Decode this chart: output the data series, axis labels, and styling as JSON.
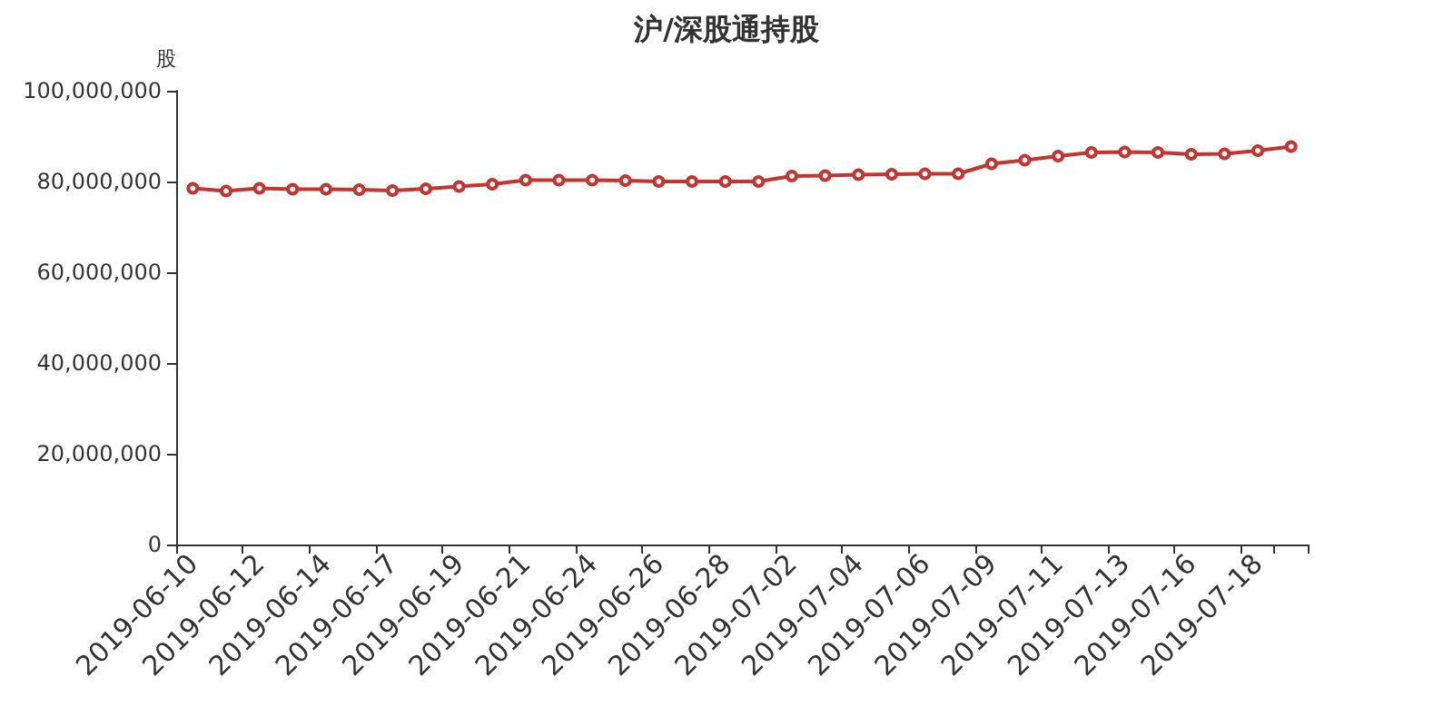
{
  "chart_data": {
    "type": "line",
    "title": "沪/深股通持股",
    "ylabel": "股",
    "categories": [
      "2019-06-10",
      null,
      "2019-06-12",
      null,
      "2019-06-14",
      null,
      "2019-06-17",
      null,
      "2019-06-19",
      null,
      "2019-06-21",
      null,
      "2019-06-24",
      null,
      "2019-06-26",
      null,
      "2019-06-28",
      null,
      "2019-07-02",
      null,
      "2019-07-04",
      null,
      "2019-07-06",
      null,
      "2019-07-09",
      null,
      "2019-07-11",
      null,
      "2019-07-13",
      null,
      "2019-07-16",
      null,
      "2019-07-18",
      null
    ],
    "series": [
      {
        "color": "#c23531",
        "values": [
          78500000,
          77900000,
          78500000,
          78300000,
          78300000,
          78200000,
          78000000,
          78400000,
          78900000,
          79400000,
          80300000,
          80300000,
          80300000,
          80200000,
          80000000,
          80000000,
          80000000,
          80000000,
          81200000,
          81300000,
          81500000,
          81600000,
          81700000,
          81700000,
          83900000,
          84700000,
          85600000,
          86400000,
          86500000,
          86400000,
          86000000,
          86100000,
          86800000,
          87700000
        ]
      }
    ],
    "ylim": [
      0,
      100000000
    ],
    "yticks": [
      0,
      {
        "value": 20000000,
        "label": "20,000,000"
      },
      {
        "value": 40000000,
        "label": "40,000,000"
      },
      {
        "value": 60000000,
        "label": "60,000,000"
      },
      {
        "value": 80000000,
        "label": "80,000,000"
      },
      {
        "value": 100000000,
        "label": "100,000,000"
      }
    ],
    "grid": false,
    "marker": "circle",
    "line_style": "solid"
  }
}
